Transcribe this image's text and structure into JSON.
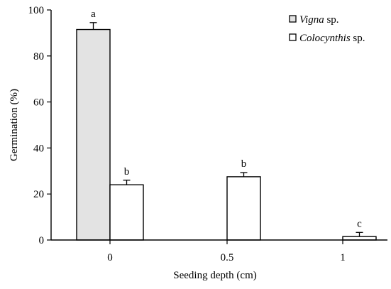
{
  "colors": {
    "vigna_fill": "#e3e3e3",
    "colocynthis_fill": "#ffffff",
    "axis": "#000000"
  },
  "chart_data": {
    "type": "bar",
    "xlabel": "Seeding depth (cm)",
    "ylabel": "Germination (%)",
    "ylim": [
      0,
      100
    ],
    "yticks": [
      "0",
      "20",
      "40",
      "60",
      "80",
      "100"
    ],
    "categories": [
      "0",
      "0.5",
      "1"
    ],
    "legend_position": "top-right",
    "grid": false,
    "series": [
      {
        "name_italic": "Vigna",
        "name_suffix": " sp.",
        "values": [
          91.5,
          0,
          0
        ],
        "errors": [
          3.0,
          0,
          0
        ],
        "letters": [
          "a",
          "",
          ""
        ]
      },
      {
        "name_italic": "Colocynthis",
        "name_suffix": " sp.",
        "values": [
          24.0,
          27.5,
          1.5
        ],
        "errors": [
          2.0,
          1.8,
          1.8
        ],
        "letters": [
          "b",
          "b",
          "c"
        ]
      }
    ]
  }
}
